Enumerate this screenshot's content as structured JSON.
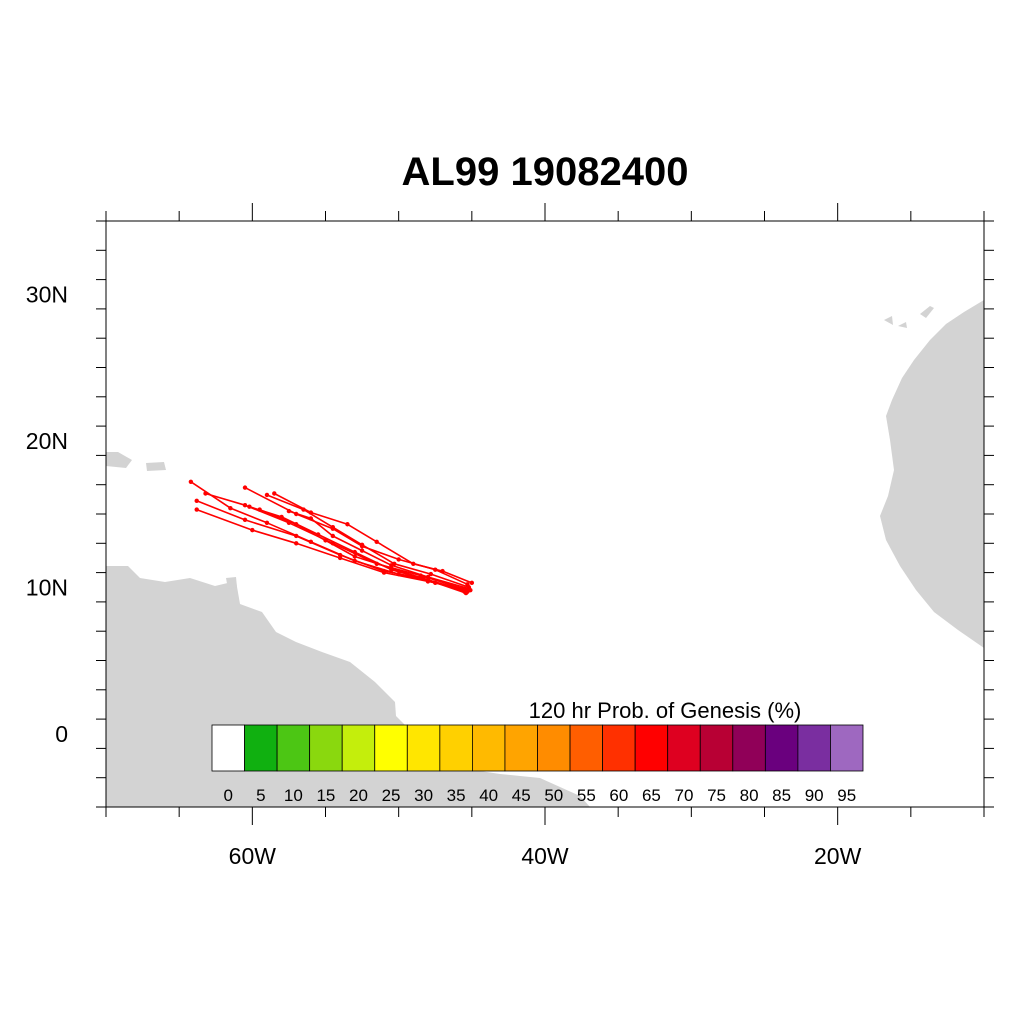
{
  "title": "AL99 19082400",
  "map": {
    "lon_range": [
      -70,
      -10
    ],
    "lat_range": [
      -5,
      35
    ],
    "land_color": "#d3d3d3",
    "track_color": "#ff0000",
    "lon_ticks": [
      {
        "value": -60,
        "label": "60W"
      },
      {
        "value": -40,
        "label": "40W"
      },
      {
        "value": -20,
        "label": "20W"
      }
    ],
    "lat_ticks": [
      {
        "value": 0,
        "label": "0"
      },
      {
        "value": 10,
        "label": "10N"
      },
      {
        "value": 20,
        "label": "20N"
      },
      {
        "value": 30,
        "label": "30N"
      }
    ]
  },
  "colorbar": {
    "title": "120 hr Prob. of Genesis (%)",
    "labels": [
      "0",
      "5",
      "10",
      "15",
      "20",
      "25",
      "30",
      "35",
      "40",
      "45",
      "50",
      "55",
      "60",
      "65",
      "70",
      "75",
      "80",
      "85",
      "90",
      "95"
    ],
    "colors": [
      "#ffffff",
      "#10b010",
      "#4cc614",
      "#8ad80e",
      "#c4ee0c",
      "#ffff00",
      "#ffe600",
      "#ffd000",
      "#ffba00",
      "#ffa400",
      "#ff8c00",
      "#ff5e00",
      "#ff3000",
      "#ff0000",
      "#de0020",
      "#b80034",
      "#900058",
      "#6a007e",
      "#7a2ea0",
      "#9e68c0"
    ]
  },
  "tracks": [
    [
      [
        -45.3,
        9.7
      ],
      [
        -47.5,
        10.3
      ],
      [
        -50,
        10.9
      ],
      [
        -53,
        11.8
      ],
      [
        -56,
        13.1
      ],
      [
        -59,
        14.4
      ],
      [
        -61.5,
        15.4
      ],
      [
        -64.2,
        17.2
      ]
    ],
    [
      [
        -45.5,
        9.8
      ],
      [
        -48,
        10.5
      ],
      [
        -50.5,
        11.2
      ],
      [
        -53,
        12.4
      ],
      [
        -55.5,
        13.6
      ],
      [
        -58,
        14.8
      ],
      [
        -60.2,
        15.5
      ]
    ],
    [
      [
        -45.2,
        10.0
      ],
      [
        -47.8,
        10.9
      ],
      [
        -50.3,
        11.6
      ],
      [
        -52.5,
        12.9
      ],
      [
        -54.5,
        14.1
      ],
      [
        -56.5,
        15.3
      ],
      [
        -59,
        16.3
      ]
    ],
    [
      [
        -45.0,
        10.3
      ],
      [
        -47,
        11.1
      ],
      [
        -49,
        11.6
      ],
      [
        -51.5,
        13.1
      ],
      [
        -53.5,
        14.3
      ],
      [
        -56,
        15.1
      ],
      [
        -58.5,
        16.4
      ]
    ],
    [
      [
        -45.4,
        9.6
      ],
      [
        -48.3,
        10.6
      ],
      [
        -51,
        11.1
      ],
      [
        -54,
        12.2
      ],
      [
        -57,
        13.5
      ],
      [
        -60.5,
        14.6
      ],
      [
        -63.8,
        15.9
      ]
    ],
    [
      [
        -45.6,
        9.9
      ],
      [
        -48.5,
        10.8
      ],
      [
        -51.5,
        11.6
      ],
      [
        -54.5,
        13.0
      ],
      [
        -57.5,
        14.4
      ],
      [
        -60.5,
        15.6
      ],
      [
        -63.2,
        16.4
      ]
    ],
    [
      [
        -45.1,
        9.8
      ],
      [
        -48,
        10.4
      ],
      [
        -51,
        11.0
      ],
      [
        -54,
        12.0
      ],
      [
        -57,
        13.0
      ],
      [
        -60,
        13.9
      ],
      [
        -63.8,
        15.3
      ]
    ],
    [
      [
        -45.3,
        10.2
      ],
      [
        -47.5,
        11.2
      ],
      [
        -50,
        11.9
      ],
      [
        -52.5,
        12.8
      ],
      [
        -54.5,
        14.0
      ],
      [
        -57,
        15.0
      ],
      [
        -60.5,
        16.8
      ]
    ],
    [
      [
        -45.5,
        9.7
      ],
      [
        -48,
        10.5
      ],
      [
        -50.5,
        11.3
      ],
      [
        -53,
        12.1
      ],
      [
        -55,
        13.2
      ],
      [
        -57,
        14.3
      ],
      [
        -59.5,
        15.3
      ]
    ],
    [
      [
        -45.2,
        9.9
      ],
      [
        -48,
        10.7
      ],
      [
        -50.5,
        11.5
      ],
      [
        -52.5,
        12.5
      ],
      [
        -54.5,
        13.5
      ],
      [
        -56,
        14.7
      ],
      [
        -57.5,
        15.2
      ]
    ]
  ]
}
